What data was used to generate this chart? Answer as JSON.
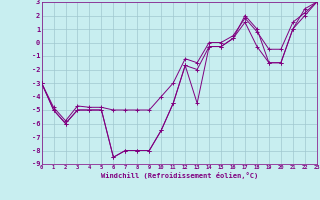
{
  "xlabel": "Windchill (Refroidissement éolien,°C)",
  "xlim": [
    0,
    23
  ],
  "ylim": [
    -9,
    3
  ],
  "xticks": [
    0,
    1,
    2,
    3,
    4,
    5,
    6,
    7,
    8,
    9,
    10,
    11,
    12,
    13,
    14,
    15,
    16,
    17,
    18,
    19,
    20,
    21,
    22,
    23
  ],
  "yticks": [
    -9,
    -8,
    -7,
    -6,
    -5,
    -4,
    -3,
    -2,
    -1,
    0,
    1,
    2,
    3
  ],
  "bg_color": "#c8eef0",
  "line_color": "#800080",
  "grid_color": "#a0c8d0",
  "series_x": [
    0,
    1,
    2,
    3,
    4,
    5,
    6,
    7,
    8,
    9,
    10,
    11,
    12,
    13,
    14,
    15,
    16,
    17,
    18,
    19,
    20,
    21,
    22,
    23
  ],
  "series1": [
    -3,
    -5,
    -6,
    -5,
    -5,
    -5,
    -8.5,
    -8,
    -8,
    -8,
    -6.5,
    -4.5,
    -1.7,
    -4.5,
    -0.3,
    -0.3,
    0.3,
    2,
    1,
    -1.5,
    -1.5,
    1,
    2.5,
    3
  ],
  "series2": [
    -3,
    -5,
    -6,
    -5,
    -5,
    -5,
    -8.5,
    -8,
    -8,
    -8,
    -6.5,
    -4.5,
    -1.7,
    -2,
    -0.3,
    -0.3,
    0.3,
    1.5,
    -0.3,
    -1.5,
    -1.5,
    1,
    2,
    3
  ],
  "series3": [
    -3,
    -4.8,
    -5.8,
    -4.7,
    -4.8,
    -4.8,
    -5,
    -5,
    -5,
    -5,
    -4,
    -3,
    -1.2,
    -1.5,
    0,
    0,
    0.5,
    1.8,
    0.8,
    -0.5,
    -0.5,
    1.5,
    2.2,
    3
  ]
}
